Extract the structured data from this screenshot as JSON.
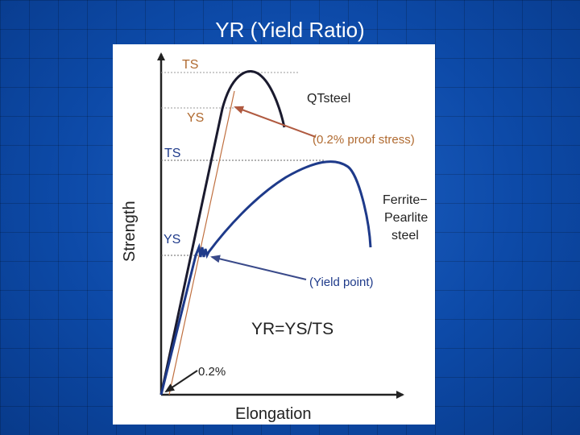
{
  "slide": {
    "title": "YR (Yield Ratio)"
  },
  "diagram": {
    "y_axis_label": "Strength",
    "x_axis_label": "Elongation",
    "qt_ts_label": "TS",
    "qt_ys_label": "YS",
    "fp_ts_label": "TS",
    "fp_ys_label": "YS",
    "qt_curve_label": "QTsteel",
    "proof_stress_label": "(0.2% proof stress)",
    "fp_curve_label_line1": "Ferrite−",
    "fp_curve_label_line2": "Pearlite",
    "fp_curve_label_line3": "steel",
    "yield_point_label": "(Yield point)",
    "formula": "YR=YS/TS",
    "offset_label": "0.2%"
  },
  "colors": {
    "background": "#0a3f95",
    "qt_curve": "#1a1a2e",
    "fp_curve": "#1e3a8a",
    "offset_line": "#c07040",
    "annotation_text": "#b06a30",
    "arrow": "#b05a40"
  }
}
